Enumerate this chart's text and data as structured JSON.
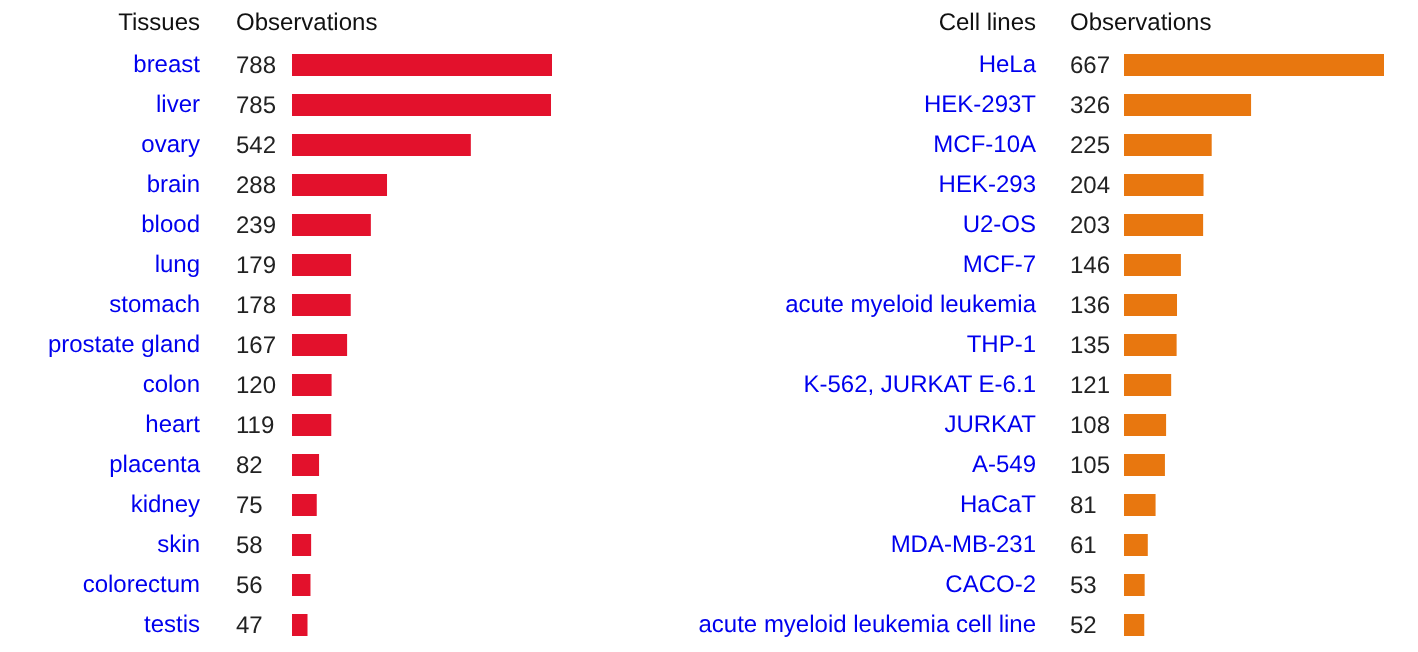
{
  "chart_data": [
    {
      "type": "bar",
      "orientation": "horizontal",
      "ylabel": "Tissues",
      "xlabel": "Observations",
      "data_labels": true,
      "color": "#e3112c",
      "categories": [
        "breast",
        "liver",
        "ovary",
        "brain",
        "blood",
        "lung",
        "stomach",
        "prostate gland",
        "colon",
        "heart",
        "placenta",
        "kidney",
        "skin",
        "colorectum",
        "testis"
      ],
      "values": [
        788,
        785,
        542,
        288,
        239,
        179,
        178,
        167,
        120,
        119,
        82,
        75,
        58,
        56,
        47
      ]
    },
    {
      "type": "bar",
      "orientation": "horizontal",
      "ylabel": "Cell lines",
      "xlabel": "Observations",
      "data_labels": true,
      "color": "#e8770f",
      "categories": [
        "HeLa",
        "HEK-293T",
        "MCF-10A",
        "HEK-293",
        "U2-OS",
        "MCF-7",
        "acute myeloid leukemia",
        "THP-1",
        "K-562, JURKAT E-6.1",
        "JURKAT",
        "A-549",
        "HaCaT",
        "MDA-MB-231",
        "CACO-2",
        "acute myeloid leukemia cell line"
      ],
      "values": [
        667,
        326,
        225,
        204,
        203,
        146,
        136,
        135,
        121,
        108,
        105,
        81,
        61,
        53,
        52
      ]
    }
  ]
}
